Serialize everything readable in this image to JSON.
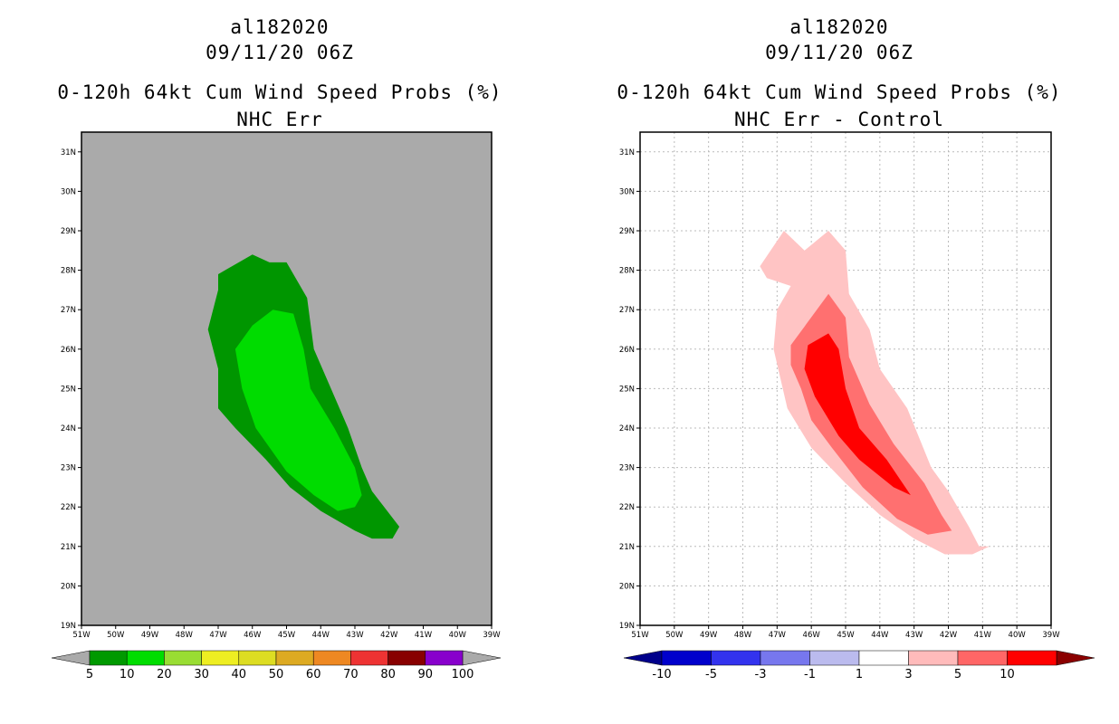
{
  "chart_data": [
    {
      "type": "heatmap",
      "storm_id": "al182020",
      "datetime": "09/11/20 06Z",
      "title": "0-120h 64kt Cum Wind Speed Probs (%)",
      "subtitle": "NHC Err",
      "xlim": [
        -51,
        -39
      ],
      "ylim": [
        19,
        31.5
      ],
      "x_ticks": [
        "51W",
        "50W",
        "49W",
        "48W",
        "47W",
        "46W",
        "45W",
        "44W",
        "43W",
        "42W",
        "41W",
        "40W",
        "39W"
      ],
      "y_ticks": [
        "19N",
        "20N",
        "21N",
        "22N",
        "23N",
        "24N",
        "25N",
        "26N",
        "27N",
        "28N",
        "29N",
        "30N",
        "31N"
      ],
      "background": "#aaaaaa",
      "grid": false,
      "legend": {
        "position": "bottom",
        "labels": [
          "5",
          "10",
          "20",
          "30",
          "40",
          "50",
          "60",
          "70",
          "80",
          "90",
          "100"
        ],
        "colors": [
          "#009900",
          "#00dd00",
          "#99dd33",
          "#eeee22",
          "#dddd22",
          "#ddaa22",
          "#ee8822",
          "#ee3333",
          "#880000",
          "#8800cc"
        ],
        "end_colors": [
          "#aaaaaa",
          "#aaaaaa"
        ]
      },
      "contours": [
        {
          "level": "5-10",
          "color": "#009600",
          "polygon": [
            [
              -47.0,
              27.9
            ],
            [
              -46.0,
              28.4
            ],
            [
              -45.5,
              28.2
            ],
            [
              -45.0,
              28.2
            ],
            [
              -44.4,
              27.3
            ],
            [
              -44.2,
              26.0
            ],
            [
              -43.7,
              25.0
            ],
            [
              -43.2,
              24.0
            ],
            [
              -42.8,
              23.0
            ],
            [
              -42.5,
              22.4
            ],
            [
              -41.7,
              21.5
            ],
            [
              -41.9,
              21.2
            ],
            [
              -42.5,
              21.2
            ],
            [
              -43.0,
              21.4
            ],
            [
              -44.0,
              21.9
            ],
            [
              -44.9,
              22.5
            ],
            [
              -45.6,
              23.2
            ],
            [
              -46.5,
              24.0
            ],
            [
              -47.0,
              24.5
            ],
            [
              -47.0,
              25.5
            ],
            [
              -47.3,
              26.5
            ],
            [
              -47.0,
              27.5
            ]
          ]
        },
        {
          "level": "10-20",
          "color": "#00dc00",
          "polygon": [
            [
              -46.0,
              26.6
            ],
            [
              -45.4,
              27.0
            ],
            [
              -44.8,
              26.9
            ],
            [
              -44.5,
              26.0
            ],
            [
              -44.3,
              25.0
            ],
            [
              -43.6,
              24.0
            ],
            [
              -43.0,
              23.0
            ],
            [
              -42.8,
              22.3
            ],
            [
              -43.0,
              22.0
            ],
            [
              -43.5,
              21.9
            ],
            [
              -44.2,
              22.3
            ],
            [
              -45.0,
              22.9
            ],
            [
              -45.9,
              24.0
            ],
            [
              -46.3,
              25.0
            ],
            [
              -46.5,
              26.0
            ]
          ]
        }
      ]
    },
    {
      "type": "heatmap",
      "storm_id": "al182020",
      "datetime": "09/11/20 06Z",
      "title": "0-120h 64kt Cum Wind Speed Probs (%)",
      "subtitle": "NHC Err - Control",
      "xlim": [
        -51,
        -39
      ],
      "ylim": [
        19,
        31.5
      ],
      "x_ticks": [
        "51W",
        "50W",
        "49W",
        "48W",
        "47W",
        "46W",
        "45W",
        "44W",
        "43W",
        "42W",
        "41W",
        "40W",
        "39W"
      ],
      "y_ticks": [
        "19N",
        "20N",
        "21N",
        "22N",
        "23N",
        "24N",
        "25N",
        "26N",
        "27N",
        "28N",
        "29N",
        "30N",
        "31N"
      ],
      "background": "#ffffff",
      "grid": true,
      "legend": {
        "position": "bottom",
        "labels": [
          "-10",
          "-5",
          "-3",
          "-1",
          "1",
          "3",
          "5",
          "10"
        ],
        "colors": [
          "#0000cc",
          "#3333ee",
          "#7777ee",
          "#bbbbee",
          "#ffffff",
          "#ffbbbb",
          "#ff6666",
          "#ff0000"
        ],
        "end_colors": [
          "#00008b",
          "#8b0000"
        ]
      },
      "contours": [
        {
          "level": "1-3",
          "color": "#ffc4c4",
          "polygon": [
            [
              -47.5,
              28.1
            ],
            [
              -46.8,
              29.0
            ],
            [
              -46.2,
              28.5
            ],
            [
              -45.5,
              29.0
            ],
            [
              -45.0,
              28.5
            ],
            [
              -44.9,
              27.4
            ],
            [
              -44.3,
              26.5
            ],
            [
              -44.0,
              25.5
            ],
            [
              -43.2,
              24.5
            ],
            [
              -42.5,
              23.0
            ],
            [
              -42.0,
              22.4
            ],
            [
              -41.4,
              21.5
            ],
            [
              -41.1,
              21.0
            ],
            [
              -40.8,
              21.0
            ],
            [
              -41.3,
              20.8
            ],
            [
              -42.1,
              20.8
            ],
            [
              -43.0,
              21.2
            ],
            [
              -44.0,
              21.8
            ],
            [
              -45.0,
              22.6
            ],
            [
              -46.0,
              23.5
            ],
            [
              -46.7,
              24.5
            ],
            [
              -47.1,
              26.0
            ],
            [
              -47.0,
              27.0
            ],
            [
              -46.6,
              27.6
            ],
            [
              -47.3,
              27.8
            ]
          ]
        },
        {
          "level": "3-5",
          "color": "#ff7070",
          "polygon": [
            [
              -46.6,
              26.1
            ],
            [
              -45.5,
              27.4
            ],
            [
              -45.0,
              26.8
            ],
            [
              -44.9,
              25.8
            ],
            [
              -44.3,
              24.6
            ],
            [
              -43.6,
              23.6
            ],
            [
              -42.7,
              22.6
            ],
            [
              -42.2,
              21.8
            ],
            [
              -41.9,
              21.4
            ],
            [
              -42.6,
              21.3
            ],
            [
              -43.5,
              21.7
            ],
            [
              -44.5,
              22.5
            ],
            [
              -45.4,
              23.5
            ],
            [
              -46.0,
              24.2
            ],
            [
              -46.3,
              25.0
            ],
            [
              -46.6,
              25.6
            ]
          ]
        },
        {
          "level": "5-10",
          "color": "#ff0000",
          "polygon": [
            [
              -46.1,
              26.1
            ],
            [
              -45.5,
              26.4
            ],
            [
              -45.2,
              26.0
            ],
            [
              -45.0,
              25.0
            ],
            [
              -44.6,
              24.0
            ],
            [
              -43.8,
              23.2
            ],
            [
              -43.1,
              22.3
            ],
            [
              -43.6,
              22.5
            ],
            [
              -44.6,
              23.2
            ],
            [
              -45.2,
              23.8
            ],
            [
              -45.9,
              24.8
            ],
            [
              -46.2,
              25.5
            ]
          ]
        }
      ]
    }
  ]
}
